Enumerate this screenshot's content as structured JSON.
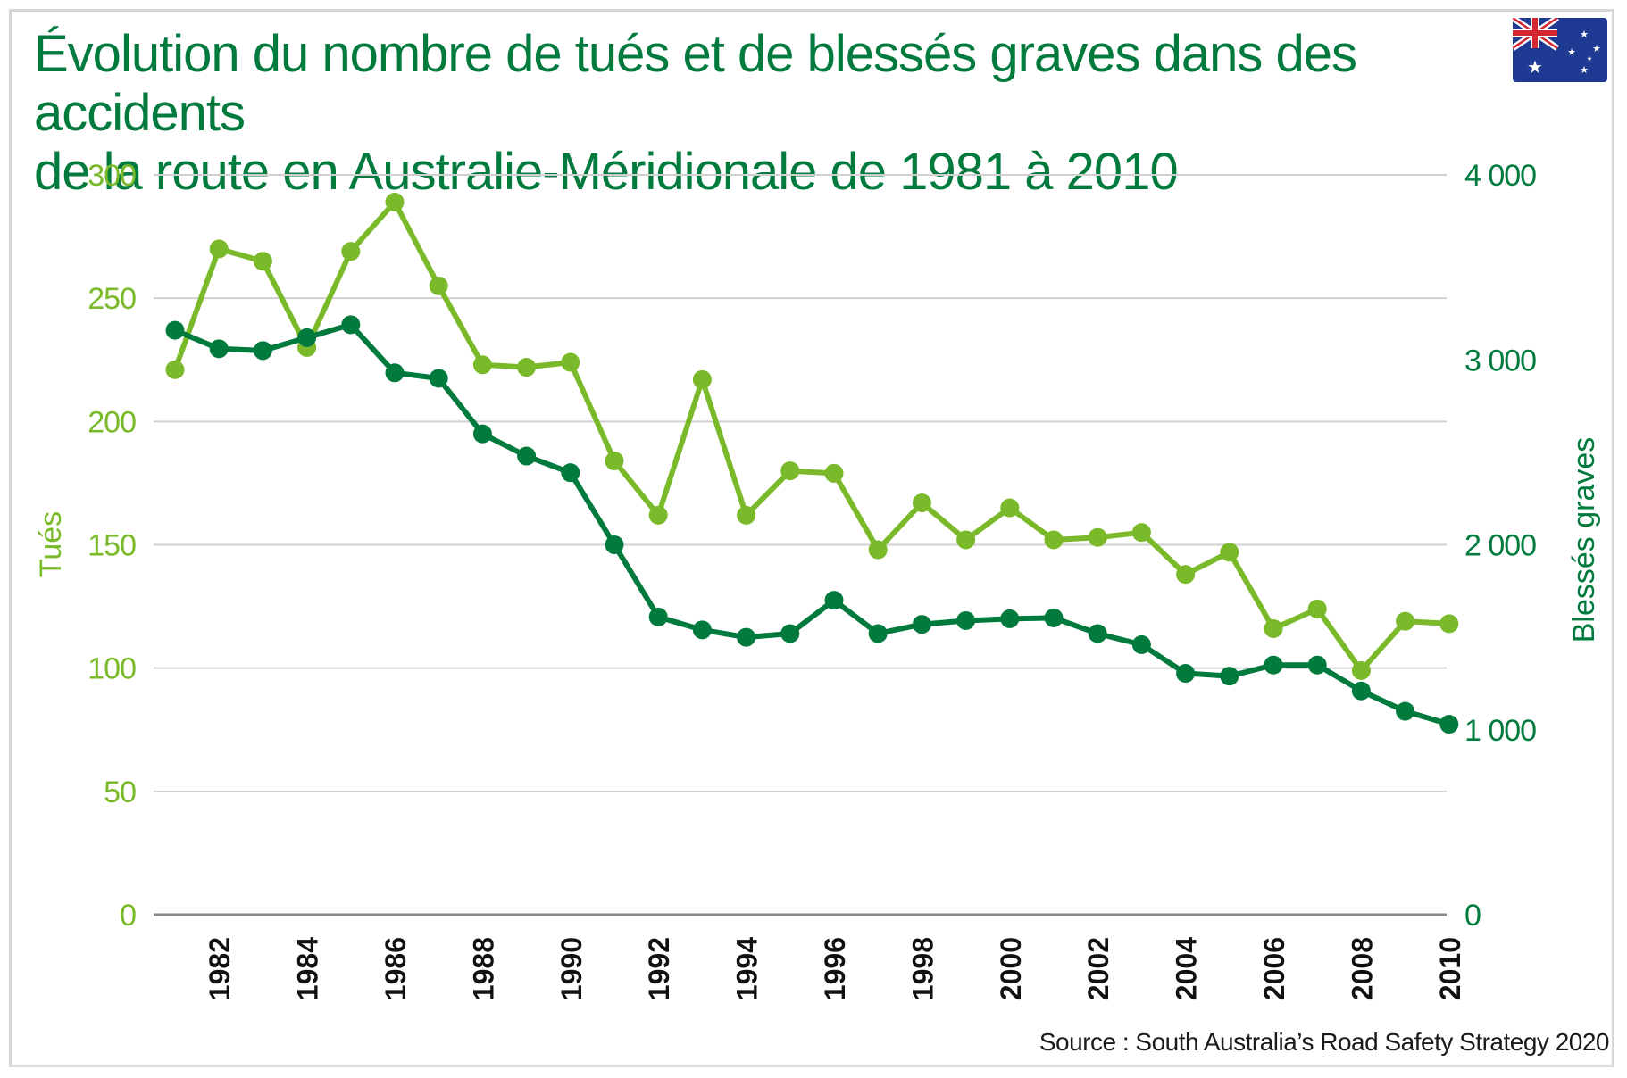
{
  "header": {
    "title_line1": "Évolution du nombre de tués et de blessés graves dans des accidents",
    "title_line2": "de la route en Australie-Méridionale de 1981 à 2010",
    "flag_icon": "australia-flag-icon"
  },
  "footer": {
    "source": "Source : South Australia’s Road Safety Strategy 2020"
  },
  "colors": {
    "title": "#007a3d",
    "tues": "#7ab929",
    "blesses": "#007a3d",
    "grid": "#d0d0d0",
    "axis": "#8a8a8a"
  },
  "chart_data": {
    "type": "line",
    "x": [
      1981,
      1982,
      1983,
      1984,
      1985,
      1986,
      1987,
      1988,
      1989,
      1990,
      1991,
      1992,
      1993,
      1994,
      1995,
      1996,
      1997,
      1998,
      1999,
      2000,
      2001,
      2002,
      2003,
      2004,
      2005,
      2006,
      2007,
      2008,
      2009,
      2010
    ],
    "x_tick_labels": [
      "1982",
      "1984",
      "1986",
      "1988",
      "1990",
      "1992",
      "1994",
      "1996",
      "1998",
      "2000",
      "2002",
      "2004",
      "2006",
      "2008",
      "2010"
    ],
    "series": [
      {
        "name": "Tués",
        "axis": "left",
        "color": "#7ab929",
        "values": [
          221,
          270,
          265,
          230,
          269,
          289,
          255,
          223,
          222,
          224,
          184,
          162,
          217,
          162,
          180,
          179,
          148,
          167,
          152,
          165,
          152,
          153,
          155,
          138,
          147,
          116,
          124,
          99,
          119,
          118
        ]
      },
      {
        "name": "Blessés graves",
        "axis": "right",
        "color": "#007a3d",
        "values": [
          3160,
          3060,
          3050,
          3120,
          3190,
          2930,
          2900,
          2600,
          2480,
          2390,
          2000,
          1610,
          1540,
          1500,
          1520,
          1700,
          1520,
          1570,
          1590,
          1600,
          1605,
          1520,
          1460,
          1305,
          1290,
          1350,
          1350,
          1210,
          1100,
          1030
        ]
      }
    ],
    "left_axis": {
      "label": "Tués",
      "ylim": [
        0,
        300
      ],
      "ticks": [
        0,
        50,
        100,
        150,
        200,
        250,
        300
      ],
      "tick_labels": [
        "0",
        "50",
        "100",
        "150",
        "200",
        "250",
        "300"
      ]
    },
    "right_axis": {
      "label": "Blessés graves",
      "ylim": [
        0,
        4000
      ],
      "ticks": [
        0,
        1000,
        2000,
        3000,
        4000
      ],
      "tick_labels": [
        "0",
        "1 000",
        "2 000",
        "3 000",
        "4 000"
      ]
    },
    "grid": true
  }
}
